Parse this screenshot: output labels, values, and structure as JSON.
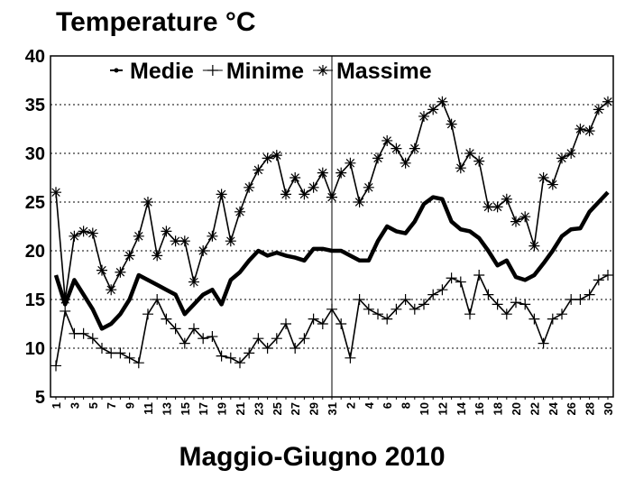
{
  "chart_data": {
    "type": "line",
    "title": "Temperature °C",
    "x_label": "Maggio-Giugno 2010",
    "categories": [
      "1",
      null,
      "3",
      null,
      "5",
      null,
      "7",
      null,
      "9",
      null,
      "11",
      null,
      "13",
      null,
      "15",
      null,
      "17",
      null,
      "19",
      null,
      "21",
      null,
      "23",
      null,
      "25",
      null,
      "27",
      null,
      "29",
      null,
      "31",
      null,
      "2",
      null,
      "4",
      null,
      "6",
      null,
      "8",
      null,
      "10",
      null,
      "12",
      null,
      "14",
      null,
      "16",
      null,
      "18",
      null,
      "20",
      null,
      "22",
      null,
      "24",
      null,
      "26",
      null,
      "28",
      null,
      "30"
    ],
    "series": [
      {
        "name": "Medie",
        "color": "#000000",
        "marker": "dot",
        "values": [
          17.5,
          14.5,
          17,
          15.5,
          14,
          12,
          12.5,
          13.5,
          15,
          17.5,
          17,
          16.5,
          16,
          15.5,
          13.5,
          14.5,
          15.5,
          16,
          14.5,
          17,
          17.8,
          19,
          20,
          19.5,
          19.8,
          19.5,
          19.3,
          19,
          20.2,
          20.2,
          20,
          20,
          19.5,
          19,
          19,
          21,
          22.5,
          22,
          21.8,
          23,
          24.8,
          25.5,
          25.3,
          23,
          22.2,
          22,
          21.3,
          20,
          18.5,
          19,
          17.3,
          17,
          17.5,
          18.7,
          20,
          21.5,
          22.2,
          22.3,
          24,
          25,
          26
        ]
      },
      {
        "name": "Minime",
        "color": "#000000",
        "marker": "plus",
        "values": [
          8.2,
          13.8,
          11.5,
          11.5,
          11,
          10,
          9.5,
          9.5,
          9,
          8.5,
          13.5,
          15,
          13,
          12,
          10.5,
          12,
          11,
          11.2,
          9.2,
          9,
          8.5,
          9.5,
          11,
          10,
          11,
          12.5,
          10,
          11,
          13,
          12.5,
          14,
          12.5,
          9,
          15,
          14,
          13.5,
          13,
          14,
          15,
          14,
          14.5,
          15.5,
          16,
          17.2,
          16.8,
          13.5,
          17.5,
          15.5,
          14.5,
          13.5,
          14.7,
          14.5,
          13,
          10.5,
          13,
          13.5,
          15,
          15,
          15.5,
          17,
          17.5
        ]
      },
      {
        "name": "Massime",
        "color": "#000000",
        "marker": "star",
        "values": [
          26,
          15,
          21.5,
          22,
          21.8,
          18,
          16,
          17.8,
          19.5,
          21.5,
          25,
          19.5,
          22,
          21,
          21,
          16.8,
          20,
          21.5,
          25.8,
          21,
          24,
          26.5,
          28.3,
          29.5,
          29.8,
          25.8,
          27.5,
          25.8,
          26.5,
          28,
          25.5,
          28,
          29,
          25,
          26.5,
          29.5,
          31.3,
          30.5,
          29,
          30.5,
          33.8,
          34.5,
          35.3,
          33,
          28.5,
          30,
          29.2,
          24.5,
          24.5,
          25.3,
          23,
          23.5,
          20.5,
          27.5,
          26.8,
          29.5,
          30,
          32.5,
          32.3,
          34.5,
          35.3
        ]
      }
    ],
    "ylim": [
      5,
      40
    ],
    "yticks": [
      5,
      10,
      15,
      20,
      25,
      30,
      35,
      40
    ],
    "grid": true,
    "legend": "top"
  }
}
